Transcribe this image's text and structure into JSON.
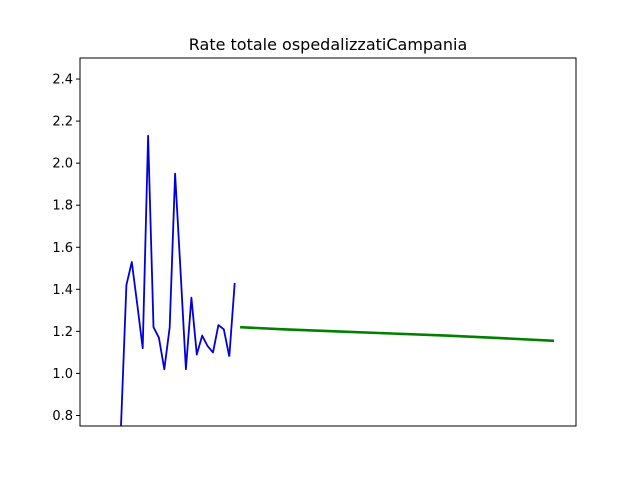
{
  "chart_data": {
    "type": "line",
    "title": "Rate totale ospedalizzatiCampania",
    "xlabel": "",
    "ylabel": "",
    "ylim": [
      0.75,
      2.5
    ],
    "yticks": [
      "0.8",
      "1.0",
      "1.2",
      "1.4",
      "1.6",
      "1.8",
      "2.0",
      "2.2",
      "2.4"
    ],
    "xticks": [],
    "grid": false,
    "series": [
      {
        "color": "#0000dd",
        "x": [
          0,
          1,
          2,
          3,
          4,
          5,
          6,
          7,
          8,
          9,
          10,
          11,
          12,
          13,
          14,
          15,
          16,
          17,
          18,
          19,
          20
        ],
        "values": [
          0.75,
          1.42,
          1.53,
          1.33,
          1.12,
          2.13,
          1.22,
          1.17,
          1.02,
          1.22,
          1.95,
          1.49,
          1.02,
          1.36,
          1.09,
          1.18,
          1.13,
          1.1,
          1.23,
          1.21,
          1.08
        ]
      },
      {
        "color": "#0000dd",
        "x": [
          20,
          21
        ],
        "values": [
          1.08,
          1.43
        ]
      },
      {
        "color": "#008000",
        "x": [
          22,
          30,
          40,
          50,
          60,
          70,
          80
        ],
        "values": [
          1.22,
          1.21,
          1.2,
          1.19,
          1.18,
          1.168,
          1.155
        ]
      }
    ]
  }
}
